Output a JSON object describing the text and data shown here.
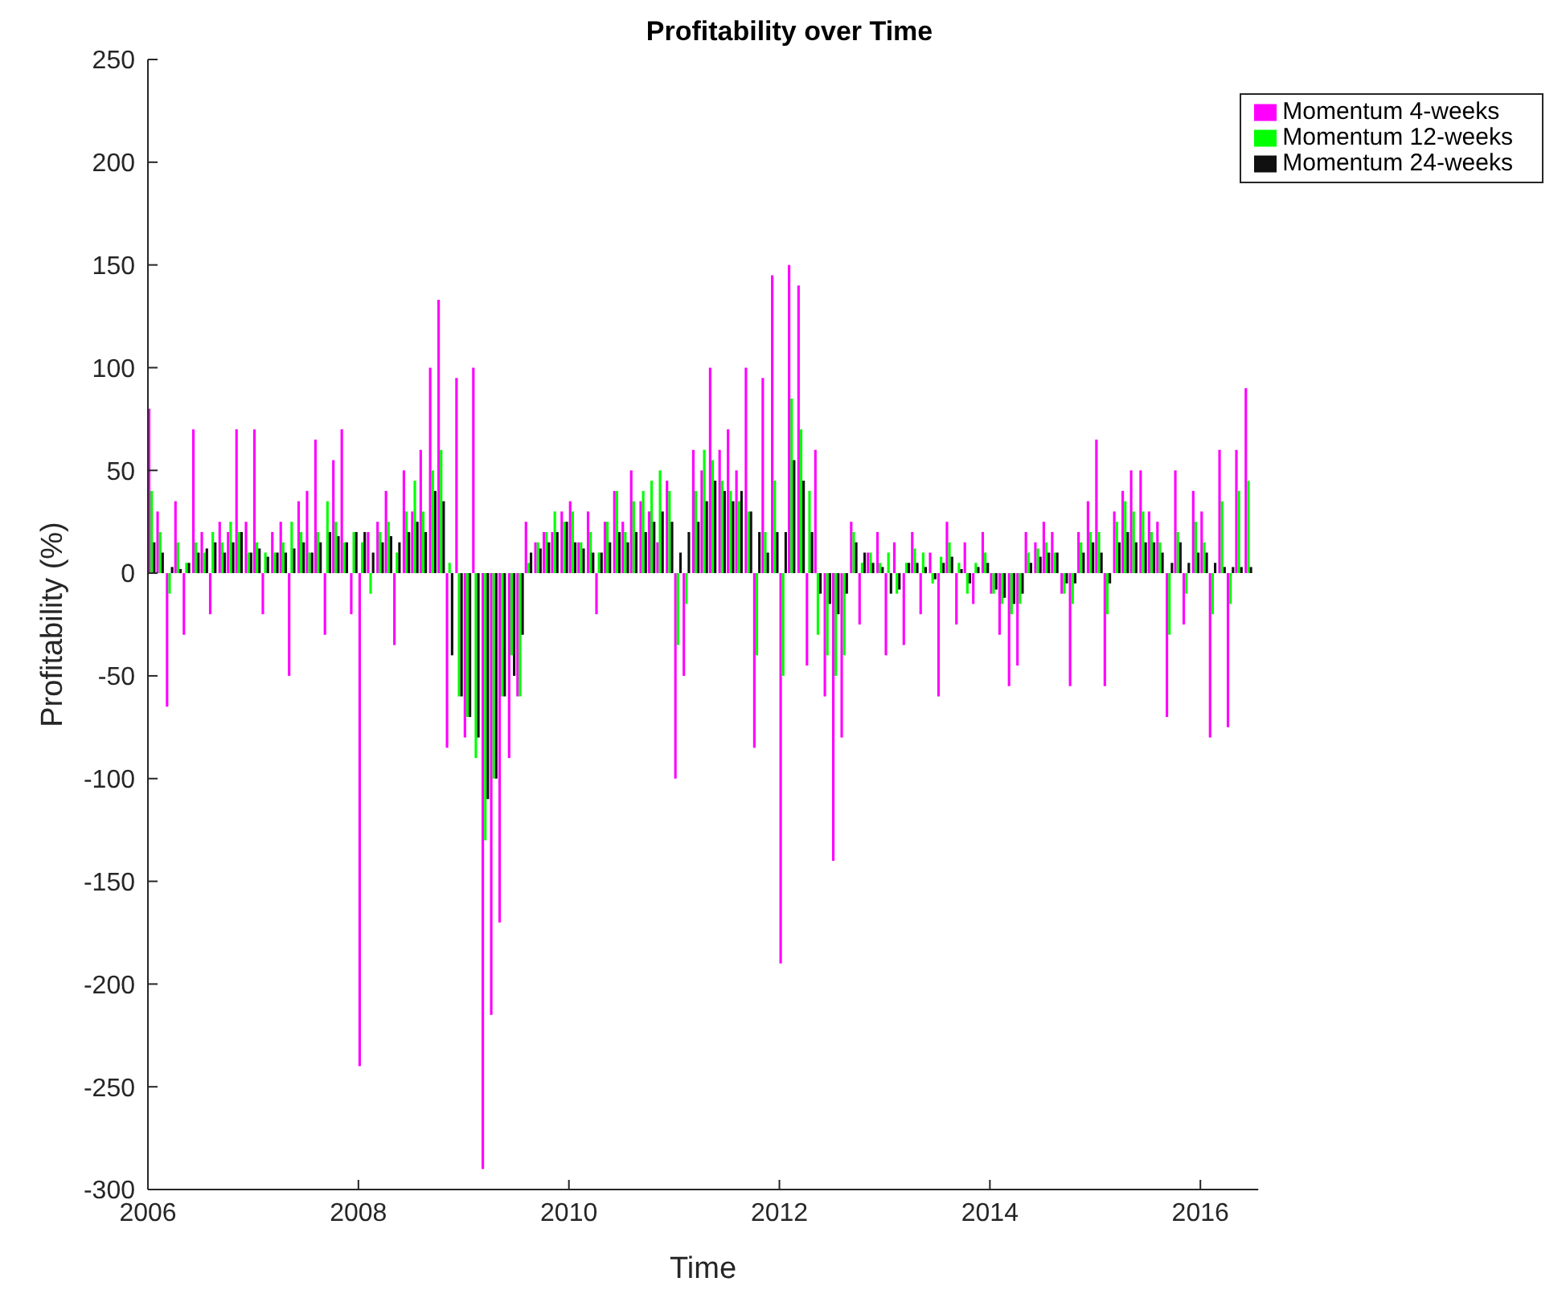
{
  "chart_data": {
    "type": "bar",
    "title": "Profitability over Time",
    "xlabel": "Time",
    "ylabel": "Profitability (%)",
    "x": [
      2006.04,
      2006.12,
      2006.21,
      2006.29,
      2006.37,
      2006.46,
      2006.54,
      2006.62,
      2006.71,
      2006.79,
      2006.87,
      2006.96,
      2007.04,
      2007.12,
      2007.21,
      2007.29,
      2007.37,
      2007.46,
      2007.54,
      2007.62,
      2007.71,
      2007.79,
      2007.87,
      2007.96,
      2008.04,
      2008.12,
      2008.21,
      2008.29,
      2008.37,
      2008.46,
      2008.54,
      2008.62,
      2008.71,
      2008.79,
      2008.87,
      2008.96,
      2009.04,
      2009.12,
      2009.21,
      2009.29,
      2009.37,
      2009.46,
      2009.54,
      2009.62,
      2009.71,
      2009.79,
      2009.87,
      2009.96,
      2010.04,
      2010.12,
      2010.21,
      2010.29,
      2010.37,
      2010.46,
      2010.54,
      2010.62,
      2010.71,
      2010.79,
      2010.87,
      2010.96,
      2011.04,
      2011.12,
      2011.21,
      2011.29,
      2011.37,
      2011.46,
      2011.54,
      2011.62,
      2011.71,
      2011.79,
      2011.87,
      2011.96,
      2012.04,
      2012.12,
      2012.21,
      2012.29,
      2012.37,
      2012.46,
      2012.54,
      2012.62,
      2012.71,
      2012.79,
      2012.87,
      2012.96,
      2013.04,
      2013.12,
      2013.21,
      2013.29,
      2013.37,
      2013.46,
      2013.54,
      2013.62,
      2013.71,
      2013.79,
      2013.87,
      2013.96,
      2014.04,
      2014.12,
      2014.21,
      2014.29,
      2014.37,
      2014.46,
      2014.54,
      2014.62,
      2014.71,
      2014.79,
      2014.87,
      2014.96,
      2015.04,
      2015.12,
      2015.21,
      2015.29,
      2015.37,
      2015.46,
      2015.54,
      2015.62,
      2015.71,
      2015.79,
      2015.87,
      2015.96,
      2016.04,
      2016.12,
      2016.21,
      2016.29,
      2016.37,
      2016.46
    ],
    "series": [
      {
        "name": "Momentum 4-weeks",
        "color": "#ff00ff",
        "values": [
          80,
          30,
          -65,
          35,
          -30,
          70,
          20,
          -20,
          25,
          20,
          70,
          25,
          70,
          -20,
          20,
          25,
          -50,
          35,
          40,
          65,
          -30,
          55,
          70,
          -20,
          -240,
          20,
          25,
          40,
          -35,
          50,
          30,
          60,
          100,
          133,
          -85,
          95,
          -80,
          100,
          -290,
          -215,
          -170,
          -90,
          -60,
          25,
          15,
          20,
          20,
          30,
          35,
          15,
          30,
          -20,
          25,
          40,
          25,
          50,
          35,
          30,
          15,
          45,
          -100,
          -50,
          60,
          50,
          100,
          60,
          70,
          50,
          100,
          -85,
          95,
          145,
          -190,
          150,
          140,
          -45,
          60,
          -60,
          -140,
          -80,
          25,
          -25,
          10,
          20,
          -40,
          15,
          -35,
          20,
          -20,
          10,
          -60,
          25,
          -25,
          15,
          -15,
          20,
          -10,
          -30,
          -55,
          -45,
          20,
          15,
          25,
          20,
          -10,
          -55,
          20,
          35,
          65,
          -55,
          30,
          40,
          50,
          50,
          30,
          25,
          -70,
          50,
          -25,
          40,
          30,
          -80,
          60,
          -75,
          60,
          90
        ]
      },
      {
        "name": "Momentum 12-weeks",
        "color": "#00ff00",
        "values": [
          40,
          20,
          -10,
          15,
          5,
          15,
          10,
          20,
          15,
          25,
          20,
          10,
          15,
          10,
          10,
          15,
          25,
          20,
          10,
          20,
          35,
          25,
          15,
          20,
          15,
          -10,
          20,
          25,
          10,
          30,
          45,
          30,
          50,
          60,
          5,
          -60,
          -70,
          -90,
          -130,
          -100,
          -60,
          -40,
          -60,
          5,
          15,
          20,
          30,
          25,
          30,
          15,
          20,
          10,
          25,
          40,
          20,
          35,
          40,
          45,
          50,
          40,
          -35,
          -15,
          40,
          60,
          55,
          45,
          40,
          35,
          30,
          -40,
          20,
          45,
          -50,
          85,
          70,
          40,
          -30,
          -40,
          -50,
          -40,
          20,
          5,
          10,
          5,
          10,
          -10,
          5,
          12,
          10,
          -5,
          8,
          15,
          5,
          -10,
          5,
          10,
          -10,
          -15,
          -20,
          -15,
          10,
          12,
          15,
          10,
          -10,
          -15,
          15,
          20,
          20,
          -20,
          25,
          35,
          30,
          30,
          20,
          15,
          -30,
          20,
          -10,
          25,
          15,
          -20,
          35,
          -15,
          40,
          45
        ]
      },
      {
        "name": "Momentum 24-weeks",
        "color": "#101010",
        "values": [
          15,
          10,
          3,
          2,
          5,
          10,
          12,
          15,
          10,
          15,
          20,
          10,
          12,
          8,
          10,
          10,
          12,
          15,
          10,
          15,
          20,
          18,
          15,
          20,
          20,
          10,
          15,
          18,
          15,
          20,
          25,
          20,
          40,
          35,
          -40,
          -60,
          -70,
          -80,
          -110,
          -100,
          -60,
          -50,
          -30,
          10,
          12,
          15,
          20,
          25,
          15,
          12,
          10,
          10,
          15,
          20,
          15,
          20,
          20,
          25,
          30,
          25,
          10,
          20,
          25,
          35,
          45,
          40,
          35,
          40,
          30,
          20,
          10,
          20,
          20,
          55,
          45,
          20,
          -10,
          -15,
          -20,
          -10,
          15,
          10,
          5,
          3,
          -10,
          -8,
          5,
          5,
          3,
          -3,
          5,
          8,
          2,
          -5,
          3,
          5,
          -8,
          -12,
          -15,
          -10,
          5,
          8,
          10,
          10,
          -5,
          -5,
          10,
          15,
          10,
          -5,
          15,
          20,
          15,
          15,
          15,
          10,
          5,
          15,
          5,
          10,
          10,
          5,
          3,
          3,
          3,
          3
        ]
      }
    ],
    "xlim": [
      2006,
      2016.55
    ],
    "xticks": [
      2006,
      2008,
      2010,
      2012,
      2014,
      2016
    ],
    "ylim": [
      -300,
      250
    ],
    "yticks": [
      -300,
      -250,
      -200,
      -150,
      -100,
      -50,
      0,
      50,
      100,
      150,
      200,
      250
    ],
    "grid": false,
    "legend": "top right"
  }
}
